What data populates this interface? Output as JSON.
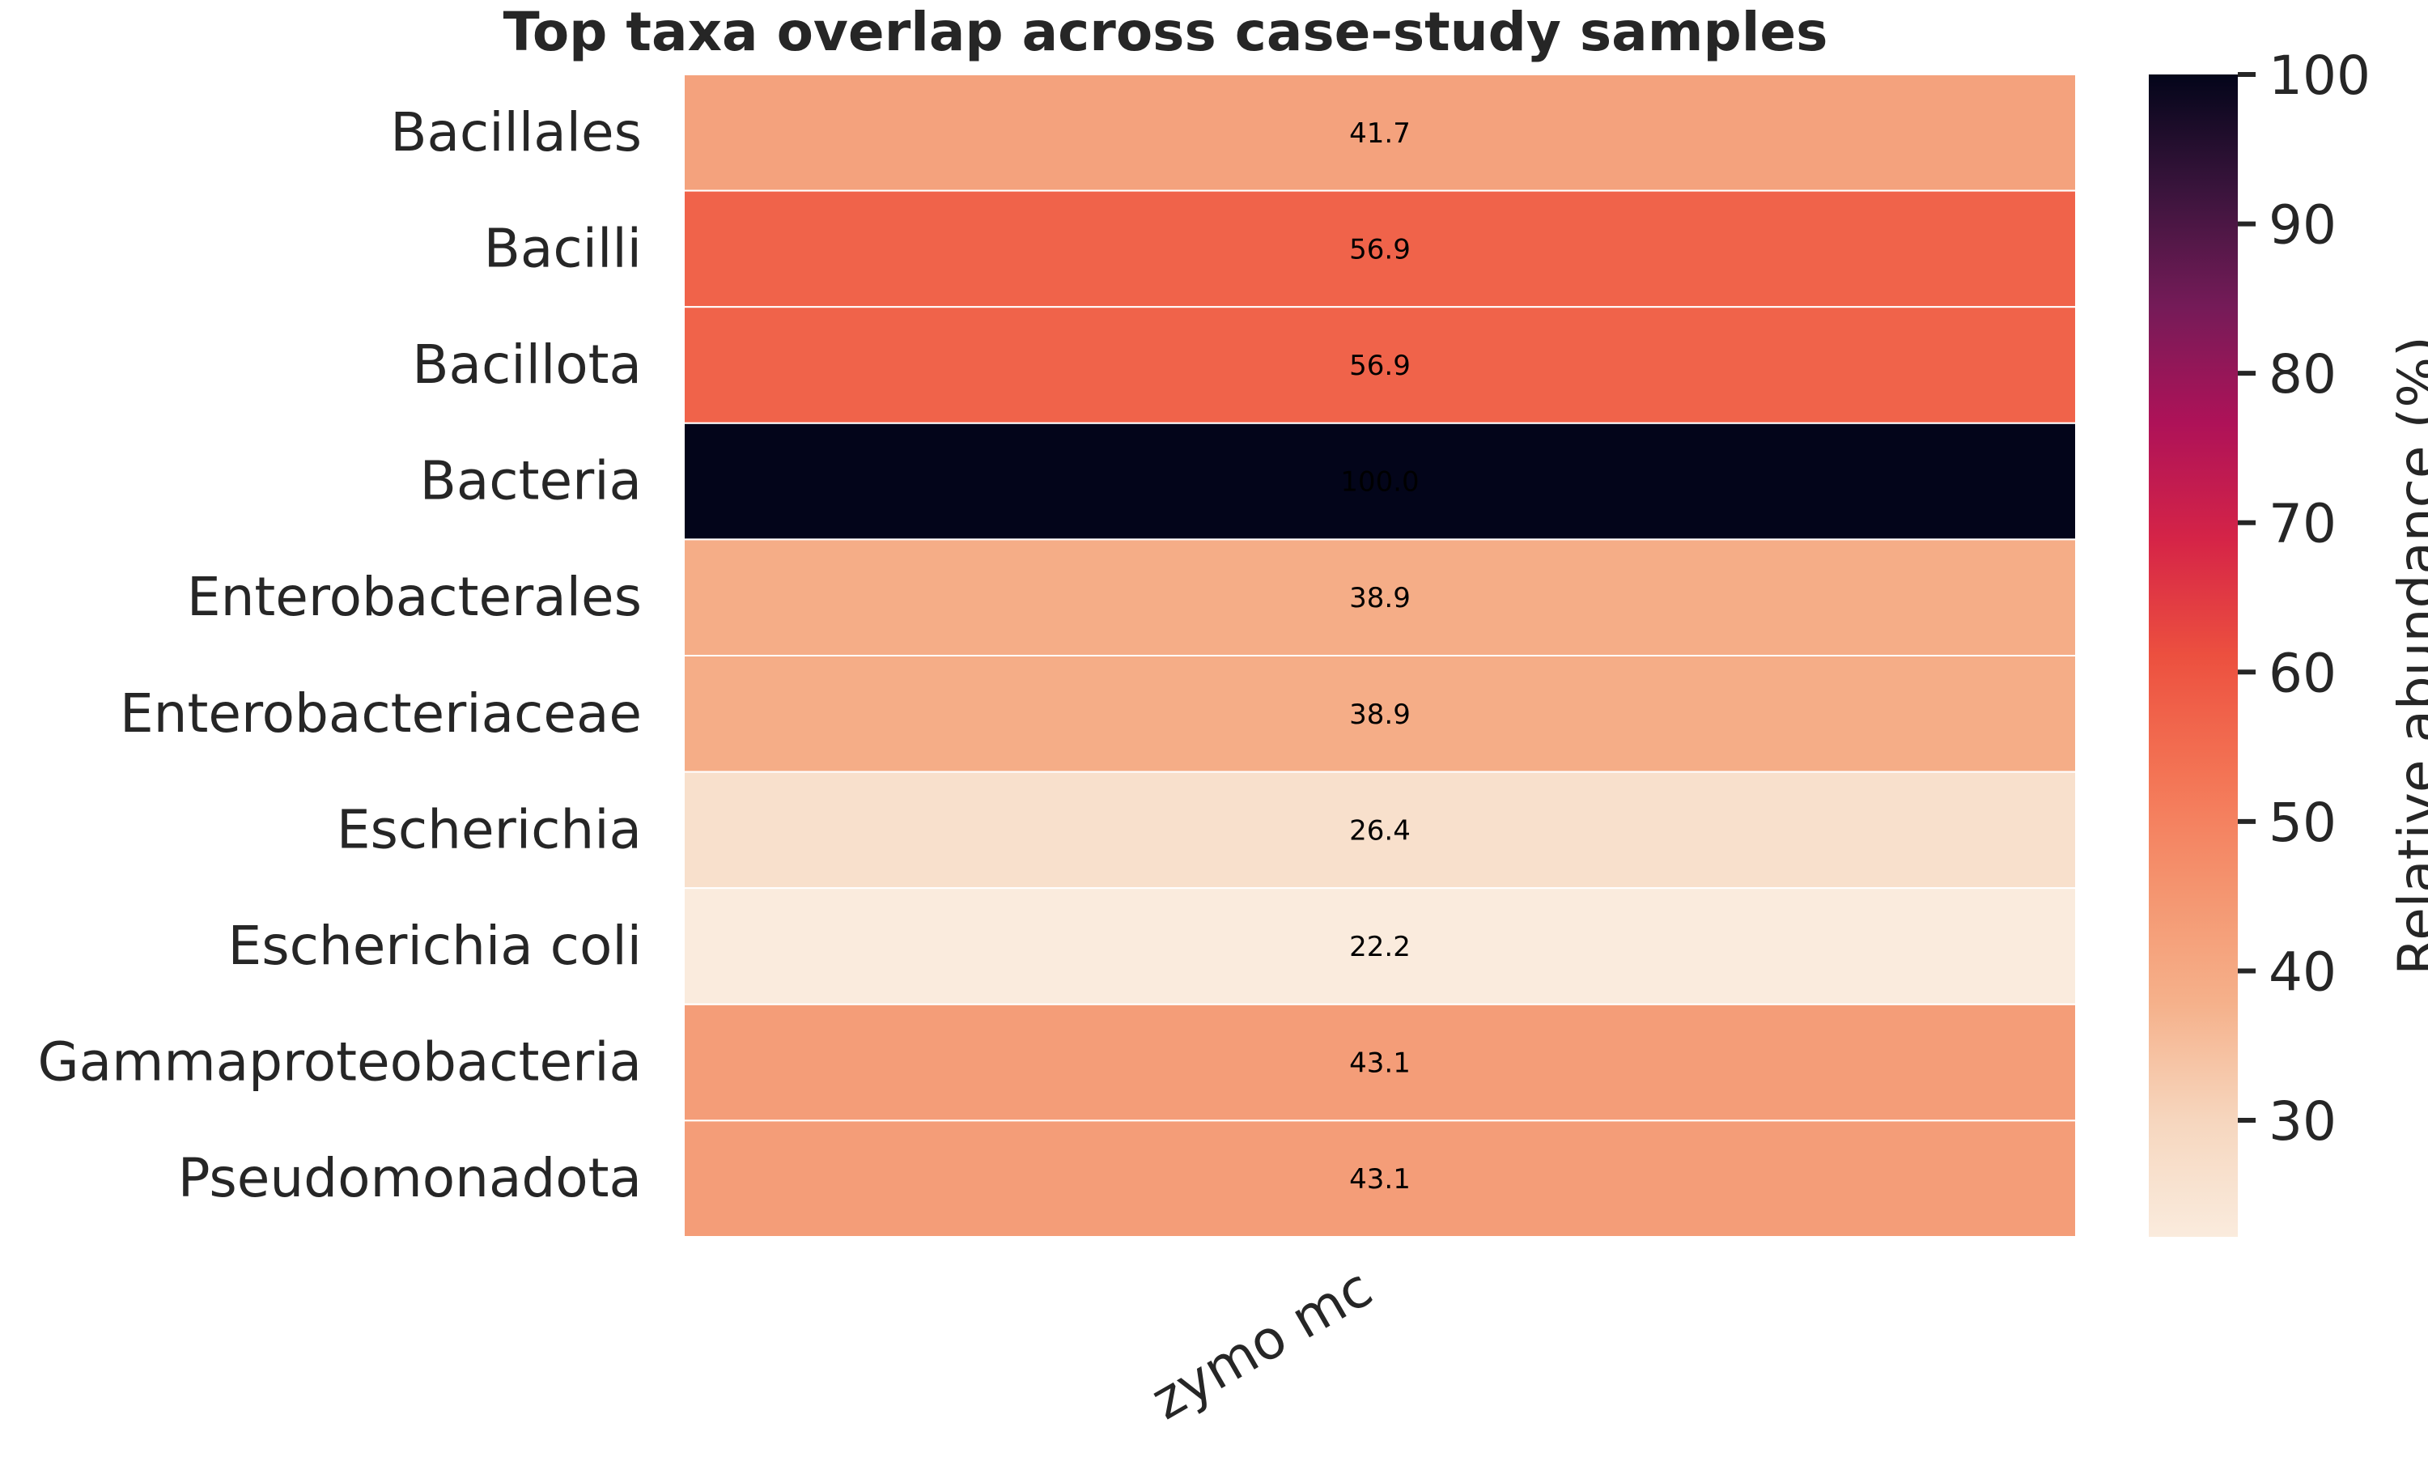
{
  "chart_data": {
    "type": "heatmap",
    "title": "Top taxa overlap across case-study samples",
    "columns": [
      "zymo mc"
    ],
    "rows": [
      "Bacillales",
      "Bacilli",
      "Bacillota",
      "Bacteria",
      "Enterobacterales",
      "Enterobacteriaceae",
      "Escherichia",
      "Escherichia coli",
      "Gammaproteobacteria",
      "Pseudomonadota"
    ],
    "values": [
      [
        41.7
      ],
      [
        56.9
      ],
      [
        56.9
      ],
      [
        100.0
      ],
      [
        38.9
      ],
      [
        38.9
      ],
      [
        26.4
      ],
      [
        22.2
      ],
      [
        43.1
      ],
      [
        43.1
      ]
    ],
    "value_labels": [
      "41.7",
      "56.9",
      "56.9",
      "100.0",
      "38.9",
      "38.9",
      "26.4",
      "22.2",
      "43.1",
      "43.1"
    ],
    "colorbar": {
      "label": "Relative abundance (%)",
      "range": [
        22.2,
        100
      ],
      "ticks": [
        30,
        40,
        50,
        60,
        70,
        80,
        90,
        100
      ],
      "colormap": "rocket_r"
    },
    "grid": false,
    "colorbar_position": "right"
  }
}
